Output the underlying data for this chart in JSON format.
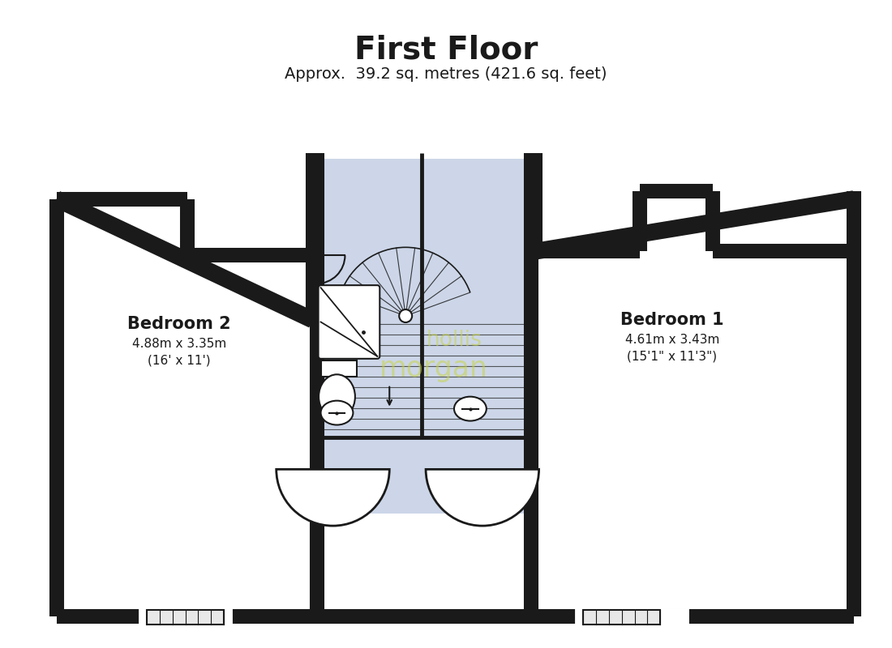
{
  "title": "First Floor",
  "subtitle": "Approx.  39.2 sq. metres (421.6 sq. feet)",
  "title_fontsize": 28,
  "subtitle_fontsize": 14,
  "bg_color": "#ffffff",
  "wall_color": "#1a1a1a",
  "landing_color": "#ccd6e8",
  "room1_label": "Bedroom 2",
  "room1_dims": "4.88m x 3.35m",
  "room1_dims2": "(16' x 11')",
  "room2_label": "Bedroom 1",
  "room2_dims": "4.61m x 3.43m",
  "room2_dims2": "(15'1\" x 11'3\")",
  "watermark1": "hollis",
  "watermark2": "morgan",
  "watermark_color": "#c8d44a",
  "wm_alpha": 0.55
}
